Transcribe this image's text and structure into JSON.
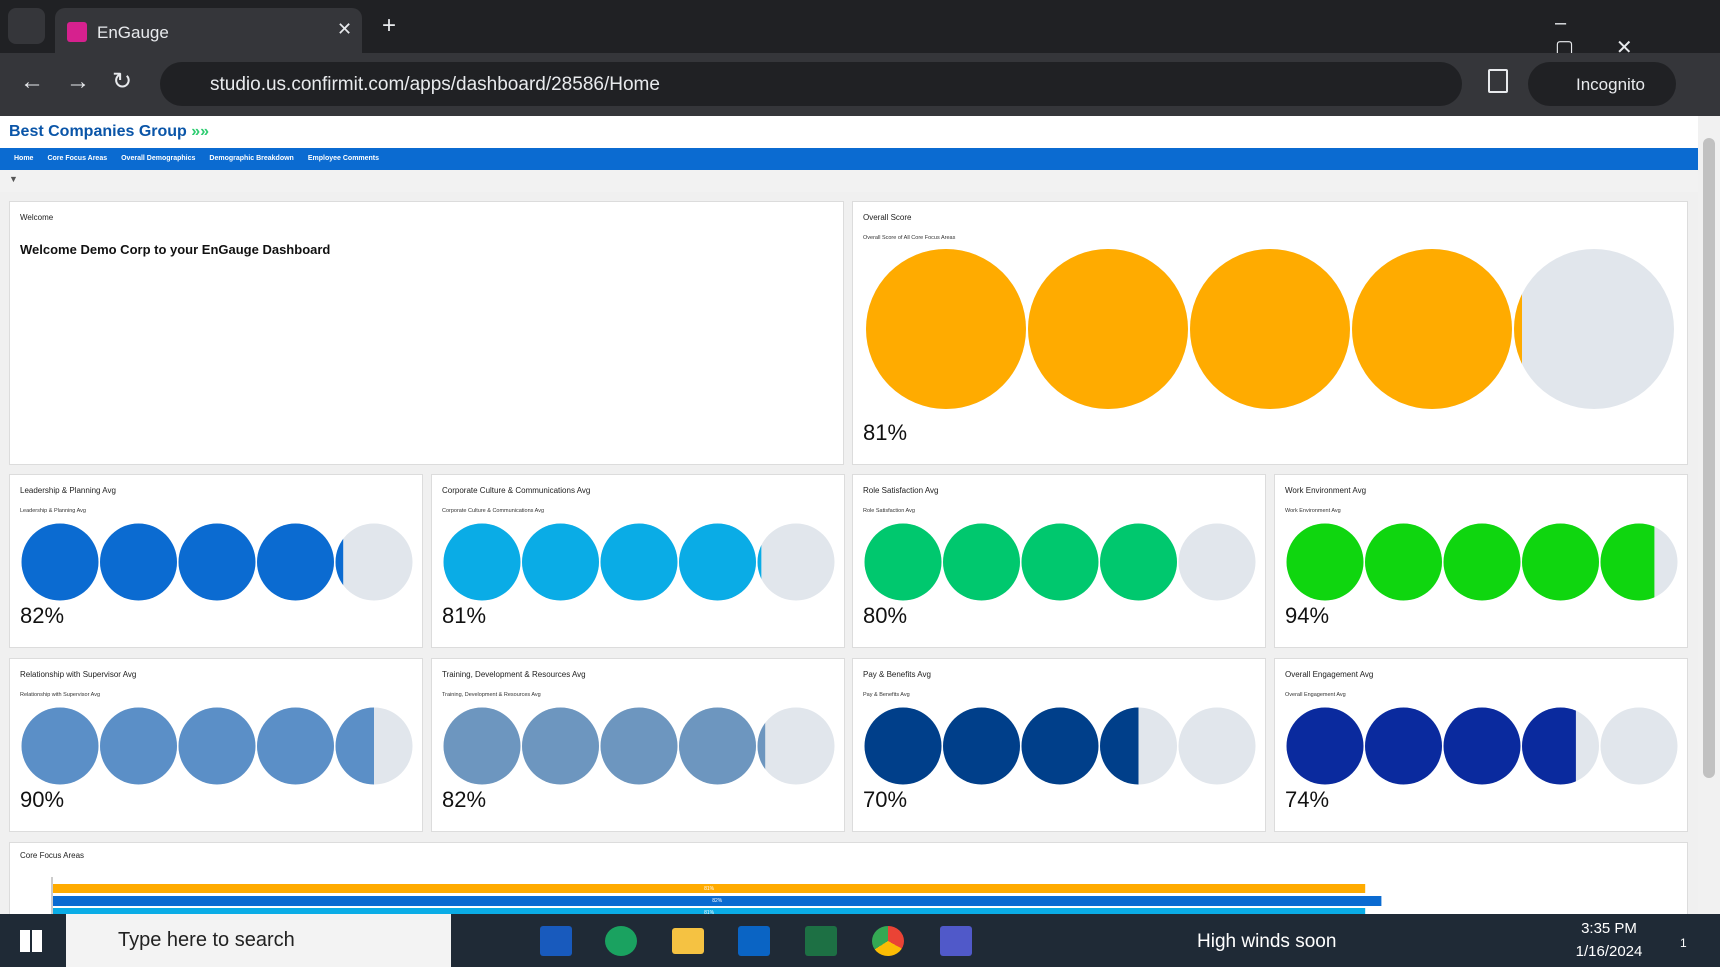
{
  "browser": {
    "tab_title": "EnGauge",
    "url": "studio.us.confirmit.com/apps/dashboard/28586/Home",
    "profile": "Incognito"
  },
  "header": {
    "logo": "Best Companies Group"
  },
  "nav": [
    "Home",
    "Core Focus Areas",
    "Overall Demographics",
    "Demographic Breakdown",
    "Employee Comments"
  ],
  "welcome": {
    "title": "Welcome",
    "message": "Welcome Demo Corp to your EnGauge Dashboard"
  },
  "widgets": [
    {
      "title": "Overall Score",
      "subtitle": "Overall Score of All Core Focus Areas",
      "value": 81,
      "value_label": "81%",
      "color": "#ffab00"
    },
    {
      "title": "Leadership & Planning Avg",
      "subtitle": "Leadership & Planning Avg",
      "value": 82,
      "value_label": "82%",
      "color": "#0b6bd1"
    },
    {
      "title": "Corporate Culture & Communications Avg",
      "subtitle": "Corporate Culture & Communications Avg",
      "value": 81,
      "value_label": "81%",
      "color": "#0aace6"
    },
    {
      "title": "Role Satisfaction Avg",
      "subtitle": "Role Satisfaction Avg",
      "value": 80,
      "value_label": "80%",
      "color": "#00c86e"
    },
    {
      "title": "Work Environment Avg",
      "subtitle": "Work Environment Avg",
      "value": 94,
      "value_label": "94%",
      "color": "#0fd60f"
    },
    {
      "title": "Relationship with Supervisor Avg",
      "subtitle": "Relationship with Supervisor Avg",
      "value": 90,
      "value_label": "90%",
      "color": "#5b8fc7"
    },
    {
      "title": "Training, Development & Resources Avg",
      "subtitle": "Training, Development & Resources Avg",
      "value": 82,
      "value_label": "82%",
      "color": "#6d96bf"
    },
    {
      "title": "Pay & Benefits Avg",
      "subtitle": "Pay & Benefits Avg",
      "value": 70,
      "value_label": "70%",
      "color": "#003f8a"
    },
    {
      "title": "Overall Engagement Avg",
      "subtitle": "Overall Engagement Avg",
      "value": 74,
      "value_label": "74%",
      "color": "#0a2a9e"
    }
  ],
  "core_focus": {
    "title": "Core Focus Areas",
    "bars": [
      {
        "value": 81,
        "label": "81%",
        "color": "#ffab00"
      },
      {
        "value": 82,
        "label": "82%",
        "color": "#0b6bd1"
      },
      {
        "value": 81,
        "label": "81%",
        "color": "#0aace6"
      }
    ]
  },
  "taskbar": {
    "search": "Type here to search",
    "weather": "High winds soon",
    "time": "3:35 PM",
    "date": "1/16/2024",
    "notifications": "1"
  }
}
